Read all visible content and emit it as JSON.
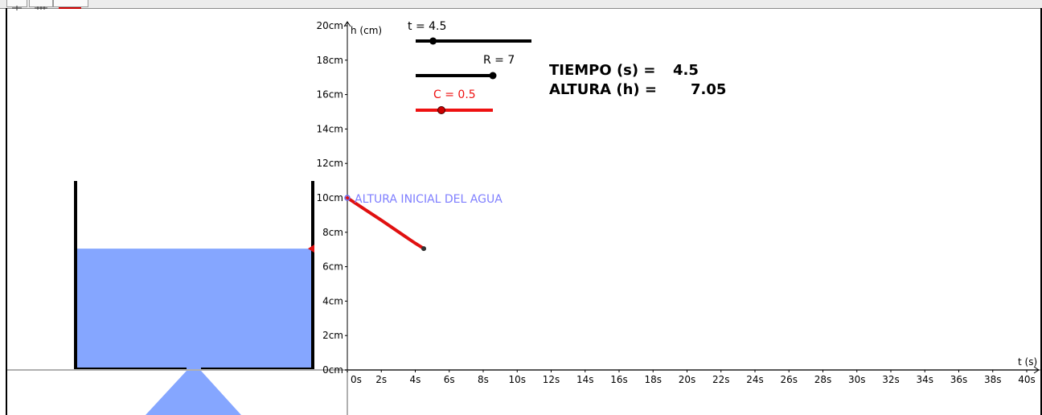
{
  "toolbar": {
    "icons": [
      "move-icon",
      "move-view-icon",
      "slider-tool-icon"
    ]
  },
  "graph": {
    "y_axis_title": "h (cm)",
    "x_axis_title": "t (s)",
    "y_ticks": [
      "0cm",
      "2cm",
      "4cm",
      "6cm",
      "8cm",
      "10cm",
      "12cm",
      "14cm",
      "16cm",
      "18cm",
      "20cm"
    ],
    "x_ticks": [
      "0s",
      "2s",
      "4s",
      "6s",
      "8s",
      "10s",
      "12s",
      "14s",
      "16s",
      "18s",
      "20s",
      "22s",
      "24s",
      "26s",
      "28s",
      "30s",
      "32s",
      "34s",
      "36s",
      "38s",
      "40s"
    ],
    "initial_height_label": "ALTURA INICIAL DEL AGUA"
  },
  "sliders": {
    "t": {
      "label": "t = 4.5",
      "value": 4.5,
      "min": 0,
      "max": 30,
      "color": "#000000"
    },
    "R": {
      "label": "R = 7",
      "value": 7,
      "min": 0,
      "max": 7,
      "color": "#000000"
    },
    "C": {
      "label": "C = 0.5",
      "value": 0.5,
      "min": 0,
      "max": 1.5,
      "color": "#ee1111"
    }
  },
  "readouts": {
    "time_label": "TIEMPO (s) =",
    "time_value": "4.5",
    "height_label": "ALTURA (h) =",
    "height_value": "7.05"
  },
  "simulation": {
    "initial_height_cm": 10,
    "current_time_s": 4.5,
    "current_height_cm": 7.05
  },
  "colors": {
    "water": "#85a6ff",
    "curve": "#e01010",
    "initial_point": "#7f7fff",
    "tank_walls": "#000000"
  },
  "chart_data": {
    "type": "line",
    "xlabel": "t (s)",
    "ylabel": "h (cm)",
    "xlim": [
      0,
      40
    ],
    "ylim": [
      0,
      20
    ],
    "grid": false,
    "series": [
      {
        "x": [
          0,
          1,
          2,
          3,
          4,
          4.5
        ],
        "y": [
          10,
          9.35,
          8.7,
          8.03,
          7.36,
          7.05
        ]
      }
    ]
  }
}
